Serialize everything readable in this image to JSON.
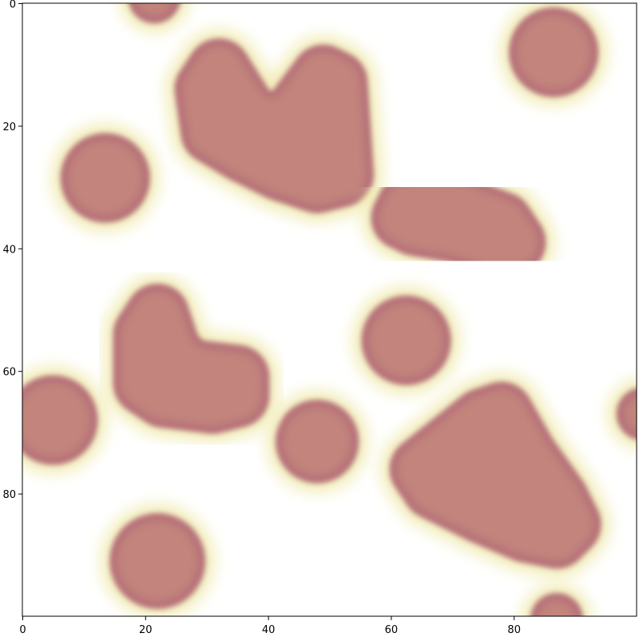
{
  "chart_data": {
    "type": "heatmap",
    "title": "",
    "xlabel": "",
    "ylabel": "",
    "xlim": [
      0,
      100
    ],
    "ylim": [
      100,
      0
    ],
    "y_axis_inverted": true,
    "grid": false,
    "colorbar": false,
    "colormap": {
      "background": "#ffffff",
      "halo": "#f1ecb4",
      "edge": "#b36c78",
      "core": "#c2847c"
    },
    "x_ticks": [
      0,
      20,
      40,
      60,
      80
    ],
    "x_tick_labels": [
      "0",
      "20",
      "40",
      "60",
      "80"
    ],
    "y_ticks": [
      0,
      20,
      40,
      60,
      80
    ],
    "y_tick_labels": [
      "0",
      "20",
      "40",
      "60",
      "80"
    ],
    "blobs": [
      {
        "shape": "circle",
        "cx": 13.5,
        "cy": 28.5,
        "r": 7
      },
      {
        "shape": "circle",
        "cx": 86.5,
        "cy": 8,
        "r": 7
      },
      {
        "shape": "circle",
        "cx": 62.5,
        "cy": 55,
        "r": 7
      },
      {
        "shape": "circle",
        "cx": 48,
        "cy": 71.5,
        "r": 6.5
      },
      {
        "shape": "circle",
        "cx": 5,
        "cy": 68,
        "r": 7
      },
      {
        "shape": "circle",
        "cx": 22,
        "cy": 91,
        "r": 7.5
      },
      {
        "shape": "circle",
        "cx": 21.5,
        "cy": -1,
        "r": 4
      },
      {
        "shape": "circle",
        "cx": 87,
        "cy": 100.5,
        "r": 4
      },
      {
        "shape": "circle",
        "cx": 101,
        "cy": 67,
        "r": 4
      },
      {
        "shape": "polygon",
        "points": [
          [
            32,
            11
          ],
          [
            37,
            19
          ],
          [
            43,
            20
          ],
          [
            49,
            12
          ],
          [
            51,
            13
          ],
          [
            52,
            28
          ],
          [
            48,
            29
          ],
          [
            42,
            27
          ],
          [
            36,
            24
          ],
          [
            31,
            21
          ],
          [
            30,
            14
          ]
        ]
      },
      {
        "shape": "polygon",
        "points": [
          [
            63,
            33
          ],
          [
            70,
            33
          ],
          [
            78,
            36
          ],
          [
            80,
            39
          ],
          [
            77,
            39
          ],
          [
            70,
            37
          ],
          [
            64,
            36
          ],
          [
            62,
            35
          ]
        ]
      },
      {
        "shape": "polygon",
        "points": [
          [
            22,
            51
          ],
          [
            24,
            57
          ],
          [
            27,
            60
          ],
          [
            35,
            61
          ],
          [
            35,
            64
          ],
          [
            31,
            65
          ],
          [
            23,
            64
          ],
          [
            20,
            62
          ],
          [
            20,
            54
          ]
        ]
      },
      {
        "shape": "polygon",
        "points": [
          [
            78,
            67
          ],
          [
            82,
            74
          ],
          [
            87,
            81
          ],
          [
            89,
            85
          ],
          [
            87,
            87
          ],
          [
            82,
            86
          ],
          [
            75,
            83
          ],
          [
            67,
            79
          ],
          [
            65,
            76
          ],
          [
            70,
            72
          ],
          [
            75,
            68
          ]
        ]
      }
    ]
  }
}
